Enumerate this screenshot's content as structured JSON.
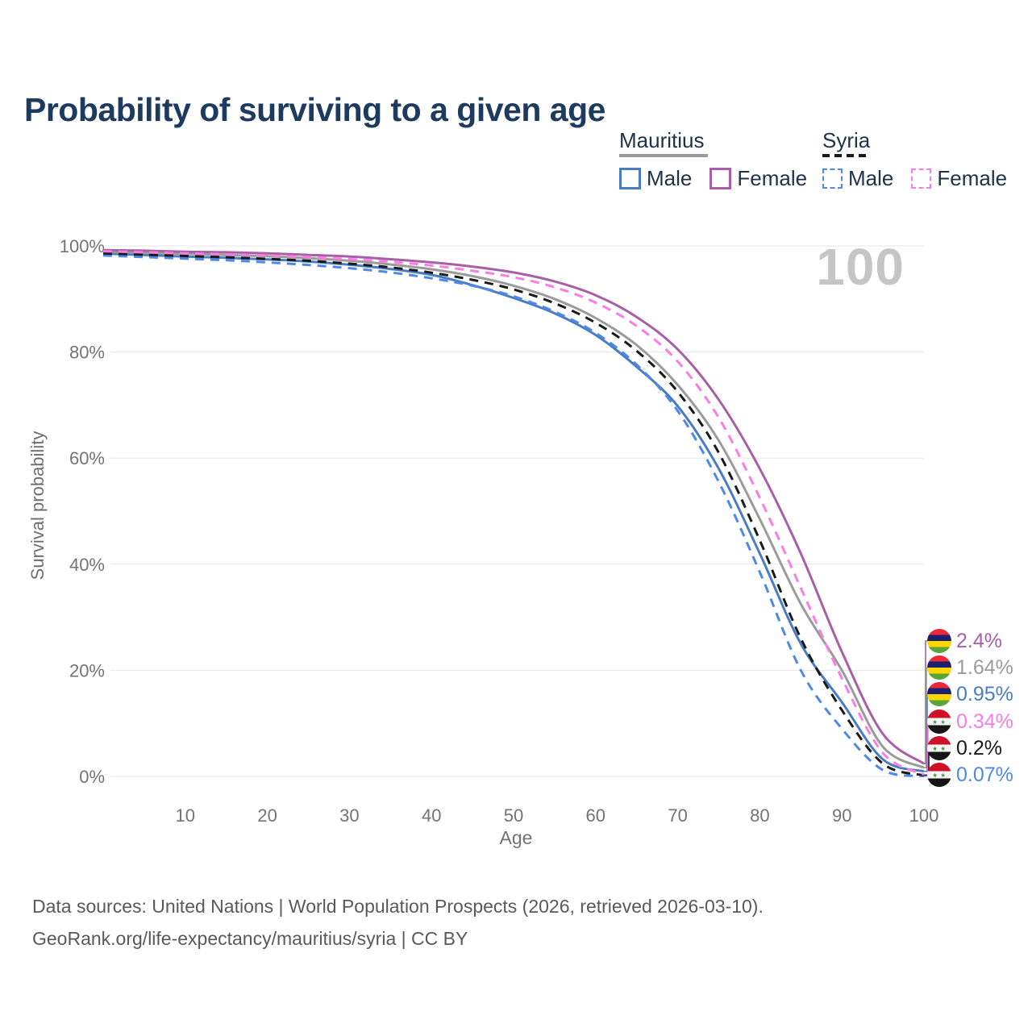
{
  "header": {
    "title": "Probability of surviving to a given age"
  },
  "legend": {
    "mauritius": {
      "label": "Mauritius",
      "male": "Male",
      "female": "Female"
    },
    "syria": {
      "label": "Syria",
      "male": "Male",
      "female": "Female"
    }
  },
  "watermark_age": "100",
  "footer": {
    "line1": "Data sources: United Nations | World Population Prospects (2026, retrieved 2026-03-10).",
    "line2": "GeoRank.org/life-expectancy/mauritius/syria | CC BY"
  },
  "colors": {
    "title_text": "#1d3a5f",
    "legend_text": "#1e3248",
    "axis_text": "#737373",
    "gridline": "#e6e6e6",
    "watermark": "#c5c5c5",
    "footer_text": "#595959"
  },
  "chart_data": {
    "type": "line",
    "title": "Probability of surviving to a given age",
    "xlabel": "Age",
    "ylabel": "Survival probability",
    "xlim": [
      0,
      100
    ],
    "ylim": [
      0,
      100
    ],
    "grid": "horizontal",
    "legend_position": "top-right",
    "x_ticks": [
      10,
      20,
      30,
      40,
      50,
      60,
      70,
      80,
      90,
      100
    ],
    "y_ticks": [
      0,
      20,
      40,
      60,
      80,
      100
    ],
    "y_tick_labels": [
      "0%",
      "20%",
      "40%",
      "60%",
      "80%",
      "100%"
    ],
    "ages": [
      0,
      5,
      10,
      15,
      20,
      25,
      30,
      35,
      40,
      45,
      50,
      55,
      60,
      65,
      70,
      75,
      80,
      85,
      90,
      95,
      100
    ],
    "series": [
      {
        "name": "Mauritius Female",
        "country": "Mauritius",
        "sex": "Female",
        "style": "solid",
        "color": "#a75fa7",
        "flag": "mauritius",
        "end_label": "2.4%",
        "values": [
          99.2,
          99.1,
          98.9,
          98.8,
          98.6,
          98.3,
          98.0,
          97.5,
          96.9,
          96.1,
          95.0,
          93.3,
          90.7,
          86.6,
          80.5,
          71.0,
          58.0,
          42.0,
          23.5,
          8.0,
          2.4
        ]
      },
      {
        "name": "Mauritius",
        "country": "Mauritius",
        "sex": "All",
        "style": "solid",
        "color": "#9b9b9b",
        "flag": "mauritius",
        "end_label": "1.64%",
        "values": [
          98.9,
          98.7,
          98.5,
          98.3,
          98.05,
          97.7,
          97.2,
          96.5,
          95.6,
          94.3,
          92.5,
          90.0,
          86.4,
          81.3,
          73.8,
          63.3,
          48.5,
          32.5,
          20.0,
          5.6,
          1.64
        ]
      },
      {
        "name": "Mauritius Male",
        "country": "Mauritius",
        "sex": "Male",
        "style": "solid",
        "color": "#4a7cc2",
        "flag": "mauritius",
        "end_label": "0.95%",
        "values": [
          98.55,
          98.3,
          98.0,
          97.75,
          97.45,
          97.05,
          96.45,
          95.65,
          94.55,
          92.6,
          90.2,
          87.3,
          83.2,
          77.2,
          69.8,
          58.0,
          42.0,
          25.0,
          14.0,
          3.2,
          0.95
        ]
      },
      {
        "name": "Syria Female",
        "country": "Syria",
        "sex": "Female",
        "style": "dashed",
        "color": "#fb7ce4",
        "flag": "syria",
        "end_label": "0.34%",
        "values": [
          99.0,
          98.8,
          98.6,
          98.4,
          98.2,
          97.9,
          97.5,
          97.0,
          96.3,
          95.3,
          94.1,
          92.2,
          89.3,
          84.9,
          78.2,
          67.6,
          52.5,
          35.5,
          18.5,
          4.4,
          0.34
        ]
      },
      {
        "name": "Syria",
        "country": "Syria",
        "sex": "All",
        "style": "dashed",
        "color": "#1a1a1a",
        "flag": "syria",
        "end_label": "0.2%",
        "values": [
          98.6,
          98.35,
          98.1,
          97.85,
          97.55,
          97.2,
          96.65,
          95.95,
          94.95,
          93.6,
          91.8,
          89.2,
          85.5,
          80.2,
          72.5,
          61.0,
          44.5,
          26.0,
          12.5,
          2.4,
          0.2
        ]
      },
      {
        "name": "Syria Male",
        "country": "Syria",
        "sex": "Male",
        "style": "dashed",
        "color": "#4d88ea",
        "flag": "syria",
        "end_label": "0.07%",
        "values": [
          98.2,
          97.9,
          97.6,
          97.3,
          96.9,
          96.4,
          95.8,
          95.0,
          93.9,
          92.5,
          90.5,
          87.6,
          83.6,
          77.6,
          68.9,
          55.5,
          38.5,
          20.0,
          9.0,
          1.2,
          0.07
        ]
      }
    ]
  }
}
